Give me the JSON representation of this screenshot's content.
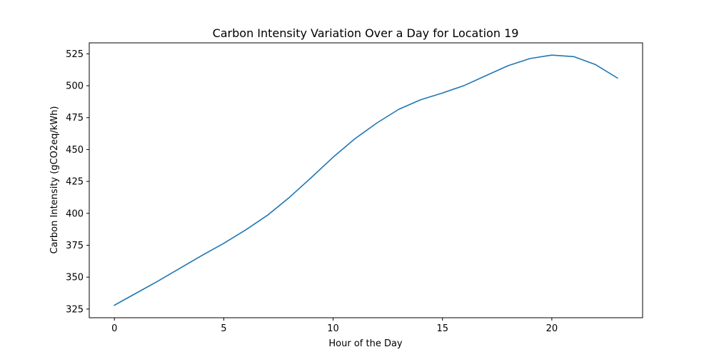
{
  "chart_data": {
    "type": "line",
    "title": "Carbon Intensity Variation Over a Day for Location 19",
    "xlabel": "Hour of the Day",
    "ylabel": "Carbon Intensity (gCO2eq/kWh)",
    "xlim": [
      -1.15,
      24.15
    ],
    "ylim": [
      318.2,
      533.6
    ],
    "xticks": [
      0,
      5,
      10,
      15,
      20
    ],
    "yticks": [
      325,
      350,
      375,
      400,
      425,
      450,
      475,
      500,
      525
    ],
    "grid": false,
    "legend": "none",
    "series": [
      {
        "color": "#1f77b4",
        "x": [
          0,
          1,
          2,
          3,
          4,
          5,
          6,
          7,
          8,
          9,
          10,
          11,
          12,
          13,
          14,
          15,
          16,
          17,
          18,
          19,
          20,
          21,
          22,
          23
        ],
        "y": [
          328,
          337.5,
          347,
          357,
          367,
          376.5,
          387,
          398.5,
          412.5,
          428,
          444,
          458.5,
          470.8,
          481.5,
          489,
          494.3,
          500.2,
          508,
          515.7,
          521.3,
          524,
          522.8,
          516.5,
          506
        ]
      }
    ]
  }
}
